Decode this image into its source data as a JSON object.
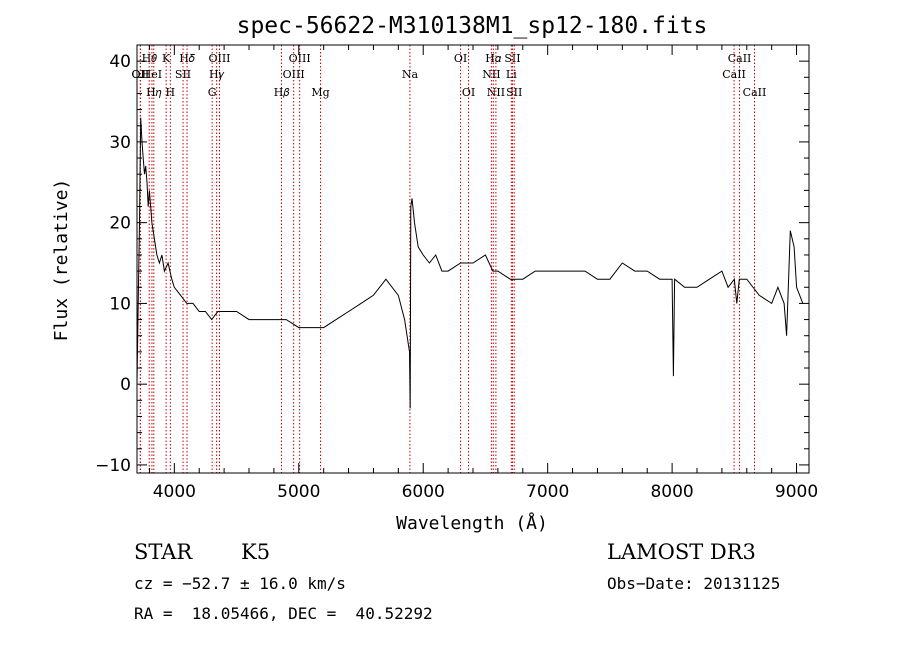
{
  "chart_data": {
    "type": "line",
    "title": "spec-56622-M310138M1_sp12-180.fits",
    "xlabel": "Wavelength (Å)",
    "ylabel": "Flux (relative)",
    "xlim": [
      3700,
      9100
    ],
    "ylim": [
      -11,
      42
    ],
    "x_ticks": [
      4000,
      5000,
      6000,
      7000,
      8000,
      9000
    ],
    "y_ticks": [
      -10,
      0,
      10,
      20,
      30,
      40
    ],
    "x_tick_labels": [
      "4000",
      "5000",
      "6000",
      "7000",
      "8000",
      "9000"
    ],
    "y_tick_labels": [
      "−10",
      "0",
      "10",
      "20",
      "30",
      "40"
    ],
    "grid": false,
    "line_color": "#000000",
    "marker_color": "#cc0000",
    "series": [
      {
        "x": [
          3700,
          3710,
          3720,
          3730,
          3740,
          3750,
          3760,
          3770,
          3780,
          3790,
          3800,
          3820,
          3840,
          3860,
          3880,
          3900,
          3920,
          3950,
          3980,
          4000,
          4050,
          4100,
          4150,
          4200,
          4250,
          4300,
          4350,
          4400,
          4500,
          4600,
          4700,
          4800,
          4900,
          5000,
          5100,
          5200,
          5300,
          5400,
          5500,
          5600,
          5700,
          5800,
          5850,
          5890,
          5895,
          5900,
          5910,
          5930,
          5960,
          6000,
          6050,
          6100,
          6150,
          6200,
          6300,
          6400,
          6500,
          6560,
          6600,
          6700,
          6800,
          6900,
          7000,
          7100,
          7200,
          7300,
          7400,
          7500,
          7600,
          7700,
          7800,
          7900,
          8000,
          8010,
          8020,
          8100,
          8200,
          8300,
          8400,
          8450,
          8500,
          8520,
          8540,
          8600,
          8700,
          8800,
          8850,
          8900,
          8920,
          8950,
          8980,
          9000,
          9050
        ],
        "y": [
          0,
          10,
          20,
          33,
          30,
          28,
          26,
          27,
          25,
          22,
          24,
          20,
          18,
          16,
          15,
          16,
          14,
          15,
          13,
          12,
          11,
          10,
          10,
          9,
          9,
          8,
          9,
          9,
          9,
          8,
          8,
          8,
          8,
          7,
          7,
          7,
          8,
          9,
          10,
          11,
          13,
          11,
          8,
          4,
          -3,
          22,
          23,
          20,
          17,
          16,
          15,
          16,
          14,
          14,
          15,
          15,
          16,
          14,
          14,
          13,
          13,
          14,
          14,
          14,
          14,
          14,
          13,
          13,
          15,
          14,
          14,
          13,
          13,
          1,
          13,
          12,
          12,
          13,
          14,
          12,
          13,
          10,
          13,
          13,
          11,
          10,
          12,
          10,
          6,
          19,
          17,
          12,
          10
        ]
      }
    ],
    "line_markers": [
      {
        "label": "OII",
        "x": 3727,
        "row": 2
      },
      {
        "label": "H𝜃",
        "x": 3798,
        "row": 1
      },
      {
        "label": "OII",
        "x": 3727,
        "row": 2
      },
      {
        "label": "HeI",
        "x": 3820,
        "row": 2
      },
      {
        "label": "H𝜂",
        "x": 3835,
        "row": 3
      },
      {
        "label": "K",
        "x": 3934,
        "row": 1
      },
      {
        "label": "H",
        "x": 3968,
        "row": 3
      },
      {
        "label": "SII",
        "x": 4070,
        "row": 2
      },
      {
        "label": "H𝛿",
        "x": 4102,
        "row": 1
      },
      {
        "label": "OIII",
        "x": 4363,
        "row": 1
      },
      {
        "label": "H𝛾",
        "x": 4340,
        "row": 2
      },
      {
        "label": "G",
        "x": 4304,
        "row": 3
      },
      {
        "label": "H𝛽",
        "x": 4861,
        "row": 3
      },
      {
        "label": "OIII",
        "x": 5007,
        "row": 1
      },
      {
        "label": "OIII",
        "x": 4959,
        "row": 2
      },
      {
        "label": "Mg",
        "x": 5175,
        "row": 3
      },
      {
        "label": "Na",
        "x": 5893,
        "row": 2
      },
      {
        "label": "OI",
        "x": 6300,
        "row": 1
      },
      {
        "label": "OI",
        "x": 6364,
        "row": 3
      },
      {
        "label": "H𝛼",
        "x": 6563,
        "row": 1
      },
      {
        "label": "NII",
        "x": 6548,
        "row": 2
      },
      {
        "label": "NII",
        "x": 6584,
        "row": 3
      },
      {
        "label": "SII",
        "x": 6717,
        "row": 1
      },
      {
        "label": "Li",
        "x": 6708,
        "row": 2
      },
      {
        "label": "SII",
        "x": 6731,
        "row": 3
      },
      {
        "label": "CaII",
        "x": 8542,
        "row": 1
      },
      {
        "label": "CaII",
        "x": 8498,
        "row": 2
      },
      {
        "label": "CaII",
        "x": 8662,
        "row": 3
      }
    ]
  },
  "info": {
    "object_class": "STAR",
    "subclass": "K5",
    "survey": "LAMOST DR3",
    "cz": "cz = −52.7 ± 16.0 km/s",
    "obs_date": "Obs−Date: 20131125",
    "coords": "RA =  18.05466, DEC =  40.52292"
  }
}
